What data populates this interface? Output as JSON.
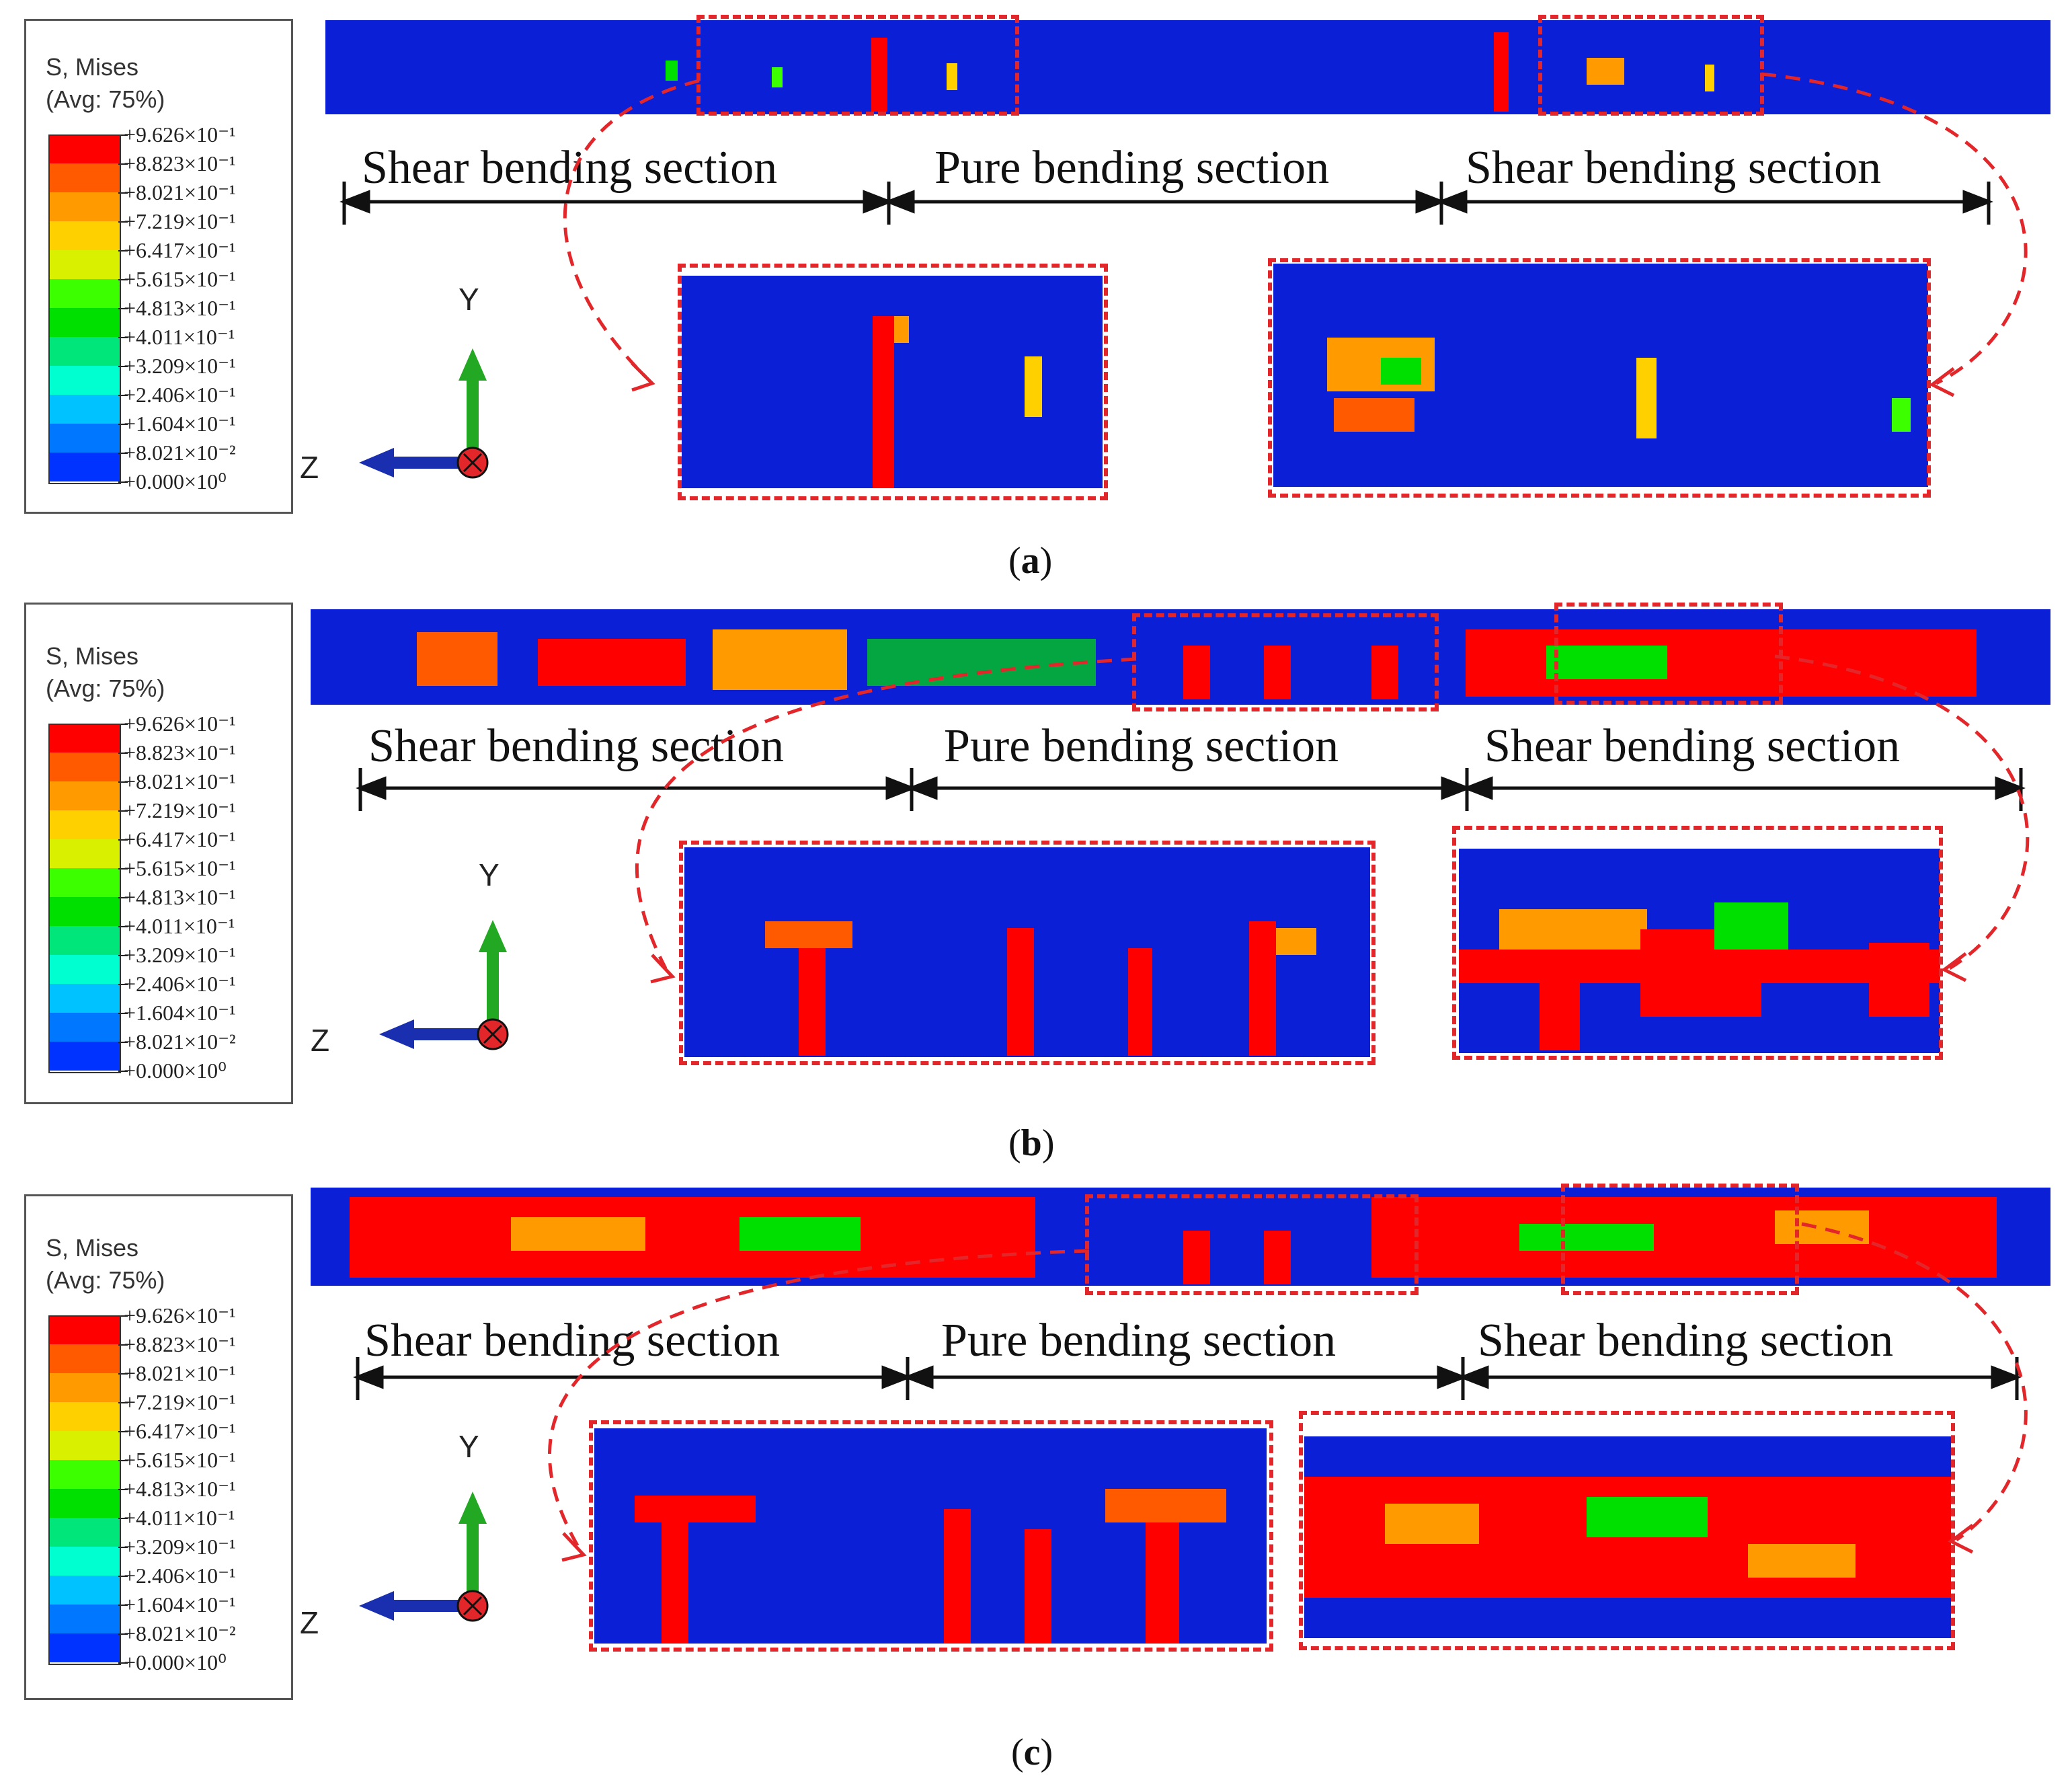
{
  "legend": {
    "title_line1": "S, Mises",
    "title_line2": "(Avg: 75%)",
    "levels": [
      {
        "label": "+9.626×10⁻¹",
        "color": "#ff0000"
      },
      {
        "label": "+8.823×10⁻¹",
        "color": "#ff5a00"
      },
      {
        "label": "+8.021×10⁻¹",
        "color": "#ff9b00"
      },
      {
        "label": "+7.219×10⁻¹",
        "color": "#ffd000"
      },
      {
        "label": "+6.417×10⁻¹",
        "color": "#d9f000"
      },
      {
        "label": "+5.615×10⁻¹",
        "color": "#3cff00"
      },
      {
        "label": "+4.813×10⁻¹",
        "color": "#00e000"
      },
      {
        "label": "+4.011×10⁻¹",
        "color": "#00e67a"
      },
      {
        "label": "+3.209×10⁻¹",
        "color": "#00ffd0"
      },
      {
        "label": "+2.406×10⁻¹",
        "color": "#00c2ff"
      },
      {
        "label": "+1.604×10⁻¹",
        "color": "#0077ff"
      },
      {
        "label": "+8.021×10⁻²",
        "color": "#0033ff"
      },
      {
        "label": "+0.000×10⁰",
        "color": "#0000e6"
      }
    ]
  },
  "axes": {
    "y": "Y",
    "z": "Z"
  },
  "sections": {
    "left": "Shear bending section",
    "middle": "Pure bending section",
    "right": "Shear bending section"
  },
  "panels": [
    {
      "label": "a"
    },
    {
      "label": "b"
    },
    {
      "label": "c"
    }
  ]
}
